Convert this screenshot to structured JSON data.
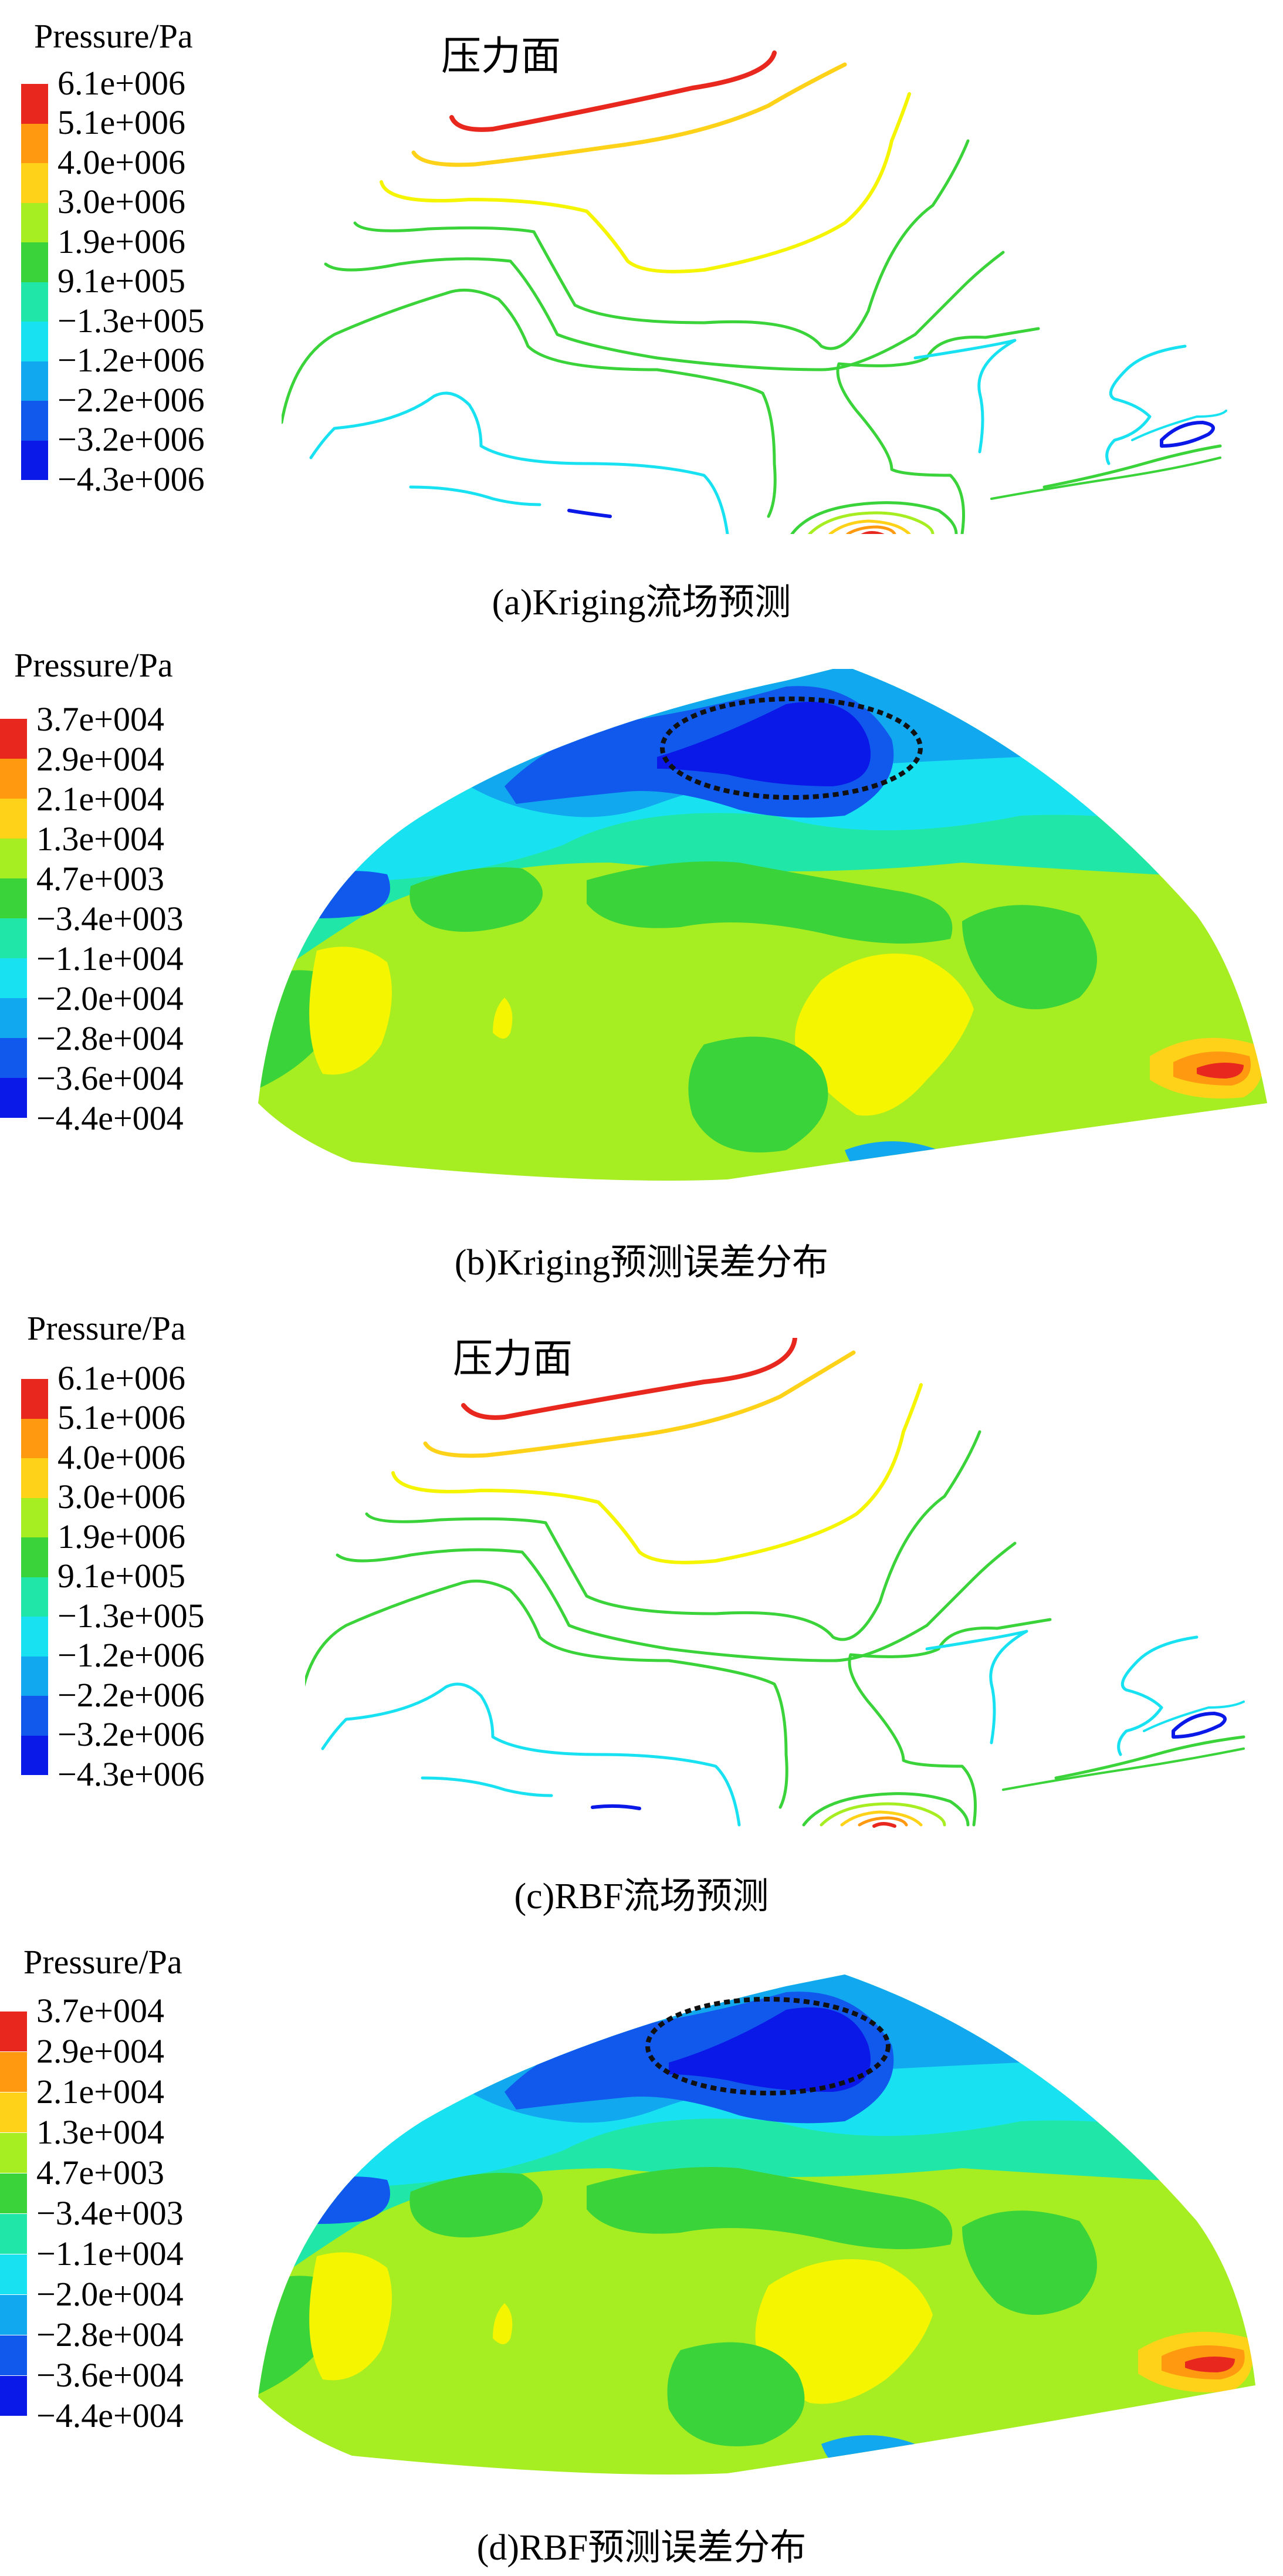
{
  "panels": [
    {
      "type": "contour_lines",
      "legend_title": "Pressure/Pa",
      "plot_label": "压力面",
      "ticks": [
        "6.1e+006",
        "5.1e+006",
        "4.0e+006",
        "3.0e+006",
        "1.9e+006",
        "9.1e+005",
        "−1.3e+005",
        "−1.2e+006",
        "−2.2e+006",
        "−3.2e+006",
        "−4.3e+006"
      ],
      "caption": "(a)Kriging流场预测"
    },
    {
      "type": "filled_contour",
      "legend_title": "Pressure/Pa",
      "ticks": [
        "3.7e+004",
        "2.9e+004",
        "2.1e+004",
        "1.3e+004",
        "4.7e+003",
        "−3.4e+003",
        "−1.1e+004",
        "−2.0e+004",
        "−2.8e+004",
        "−3.6e+004",
        "−4.4e+004"
      ],
      "caption": "(b)Kriging预测误差分布"
    },
    {
      "type": "contour_lines",
      "legend_title": "Pressure/Pa",
      "plot_label": "压力面",
      "ticks": [
        "6.1e+006",
        "5.1e+006",
        "4.0e+006",
        "3.0e+006",
        "1.9e+006",
        "9.1e+005",
        "−1.3e+005",
        "−1.2e+006",
        "−2.2e+006",
        "−3.2e+006",
        "−4.3e+006"
      ],
      "caption": "(c)RBF流场预测"
    },
    {
      "type": "filled_contour",
      "legend_title": "Pressure/Pa",
      "ticks": [
        "3.7e+004",
        "2.9e+004",
        "2.1e+004",
        "1.3e+004",
        "4.7e+003",
        "−3.4e+003",
        "−1.1e+004",
        "−2.0e+004",
        "−2.8e+004",
        "−3.6e+004",
        "−4.4e+004"
      ],
      "caption": "(d)RBF预测误差分布"
    }
  ],
  "colormap": [
    "#e8281e",
    "#ff9a10",
    "#ffd21a",
    "#f5f500",
    "#a6ee22",
    "#3ad33a",
    "#20e6a8",
    "#18e2f2",
    "#12a8ef",
    "#1158ec",
    "#0a18e8"
  ]
}
